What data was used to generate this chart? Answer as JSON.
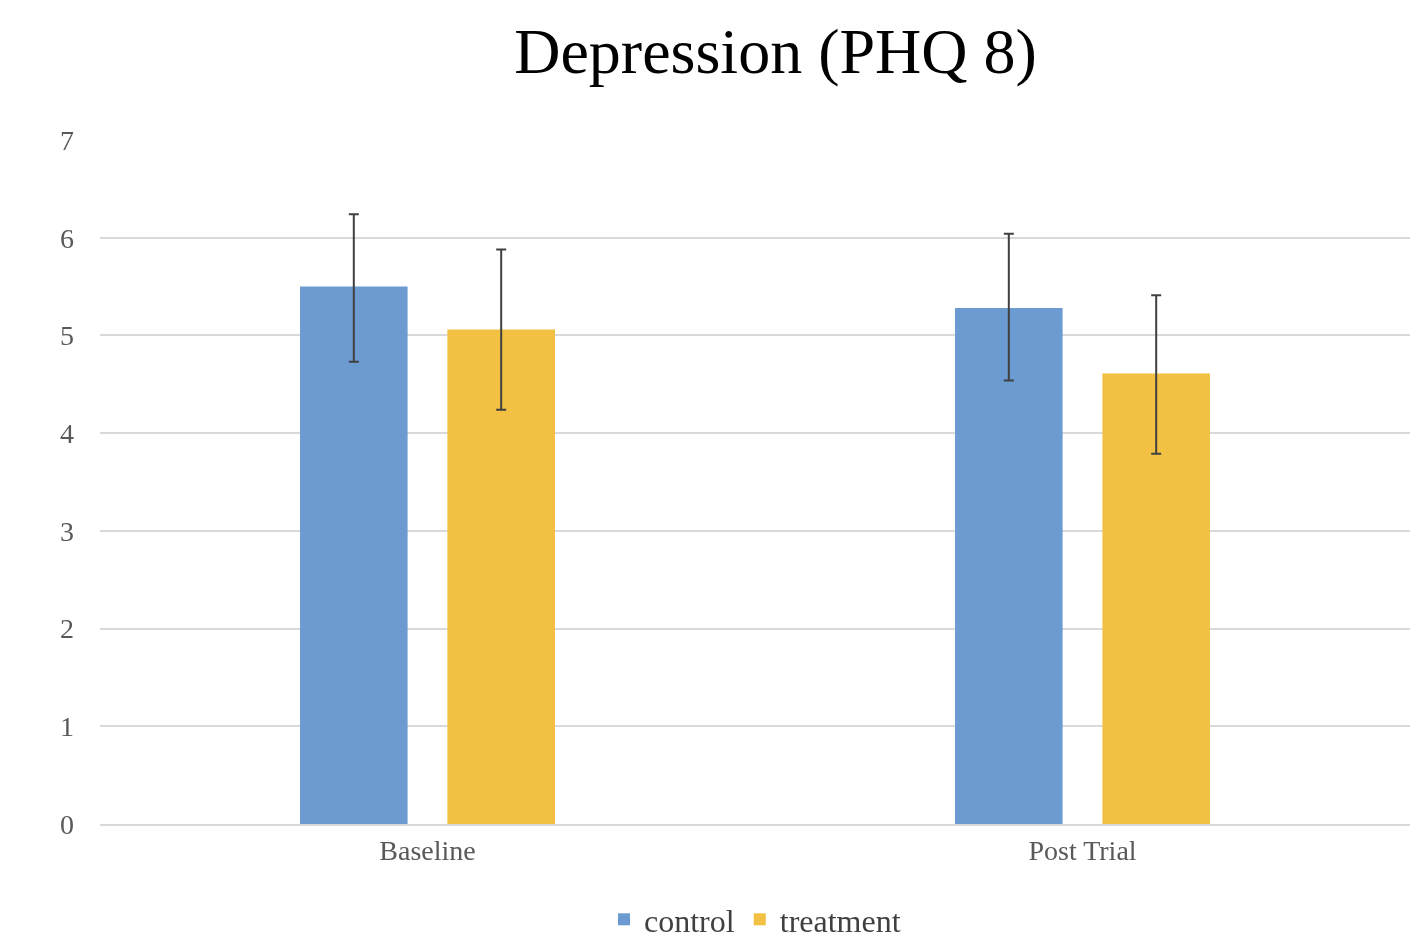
{
  "chart_data": {
    "type": "bar",
    "title": "Depression (PHQ 8)",
    "categories": [
      "Baseline",
      "Post Trial"
    ],
    "series": [
      {
        "name": "control",
        "color": "#6b9bd1",
        "values": [
          5.5,
          5.28
        ],
        "errors": [
          [
            4.73,
            6.24
          ],
          [
            4.54,
            6.04
          ]
        ]
      },
      {
        "name": "treatment",
        "color": "#f2c042",
        "values": [
          5.06,
          4.61
        ],
        "errors": [
          [
            4.24,
            5.88
          ],
          [
            3.79,
            5.41
          ]
        ]
      }
    ],
    "ylim": [
      0,
      7
    ],
    "yticks": [
      0,
      1,
      2,
      3,
      4,
      5,
      6,
      7
    ],
    "grid": "y",
    "legend": "bottom"
  }
}
